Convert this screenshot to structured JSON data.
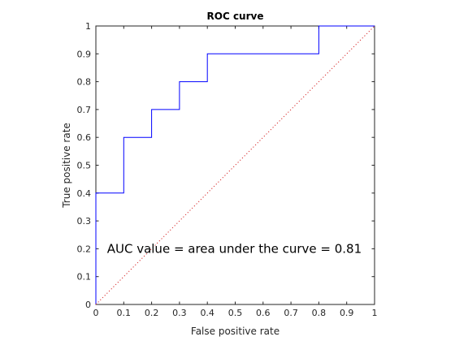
{
  "chart_data": {
    "type": "line",
    "title": "ROC curve",
    "xlabel": "False positive rate",
    "ylabel": "True positive rate",
    "xlim": [
      0,
      1
    ],
    "ylim": [
      0,
      1
    ],
    "xticks": [
      "0",
      "0.1",
      "0.2",
      "0.3",
      "0.4",
      "0.5",
      "0.6",
      "0.7",
      "0.8",
      "0.9",
      "1"
    ],
    "yticks": [
      "0",
      "0.1",
      "0.2",
      "0.3",
      "0.4",
      "0.5",
      "0.6",
      "0.7",
      "0.8",
      "0.9",
      "1"
    ],
    "grid": false,
    "series": [
      {
        "style": "solid",
        "color": "#0000ff",
        "x": [
          0,
          0,
          0.1,
          0.1,
          0.2,
          0.2,
          0.3,
          0.3,
          0.4,
          0.4,
          0.8,
          0.8,
          1
        ],
        "y": [
          0,
          0.4,
          0.4,
          0.6,
          0.6,
          0.7,
          0.7,
          0.8,
          0.8,
          0.9,
          0.9,
          1,
          1
        ]
      },
      {
        "style": "dotted",
        "color": "#d62728",
        "x": [
          0,
          1
        ],
        "y": [
          0,
          1
        ]
      }
    ],
    "annotation": {
      "text": "AUC value = area under the curve = 0.81",
      "x": 0.04,
      "y": 0.2
    }
  }
}
